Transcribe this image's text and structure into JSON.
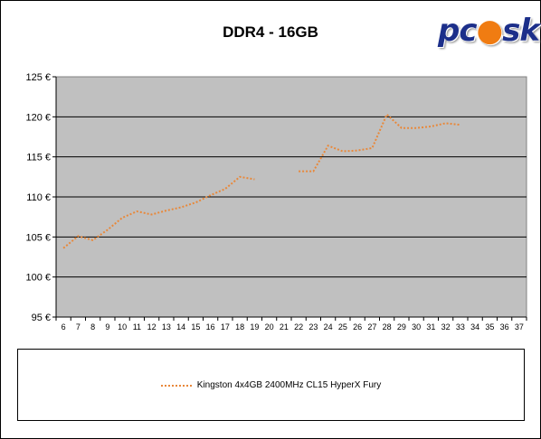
{
  "logo_text": "pcask",
  "chart_data": {
    "type": "line",
    "title": "DDR4 - 16GB",
    "xlabel": "",
    "ylabel": "",
    "x": [
      6,
      7,
      8,
      9,
      10,
      11,
      12,
      13,
      14,
      15,
      16,
      17,
      18,
      19,
      20,
      21,
      22,
      23,
      24,
      25,
      26,
      27,
      28,
      29,
      30,
      31,
      32,
      33,
      34,
      35,
      36,
      37
    ],
    "xlim": [
      6,
      37
    ],
    "ylim": [
      95,
      125
    ],
    "y_ticks": [
      95,
      100,
      105,
      110,
      115,
      120,
      125
    ],
    "y_tick_labels": [
      "95 €",
      "100 €",
      "105 €",
      "110 €",
      "115 €",
      "120 €",
      "125 €"
    ],
    "grid": true,
    "legend_position": "bottom",
    "series": [
      {
        "name": "Kingston 4x4GB 2400MHz CL15 HyperX Fury",
        "color": "#e8883a",
        "style": "dotted",
        "values": [
          103.6,
          105.1,
          104.6,
          105.9,
          107.4,
          108.2,
          107.8,
          108.3,
          108.7,
          109.3,
          110.2,
          111.0,
          112.5,
          112.2,
          null,
          null,
          113.2,
          113.2,
          116.4,
          115.7,
          115.8,
          116.1,
          120.3,
          118.6,
          118.6,
          118.8,
          119.2,
          119.0,
          null,
          null,
          null,
          null
        ]
      }
    ]
  }
}
